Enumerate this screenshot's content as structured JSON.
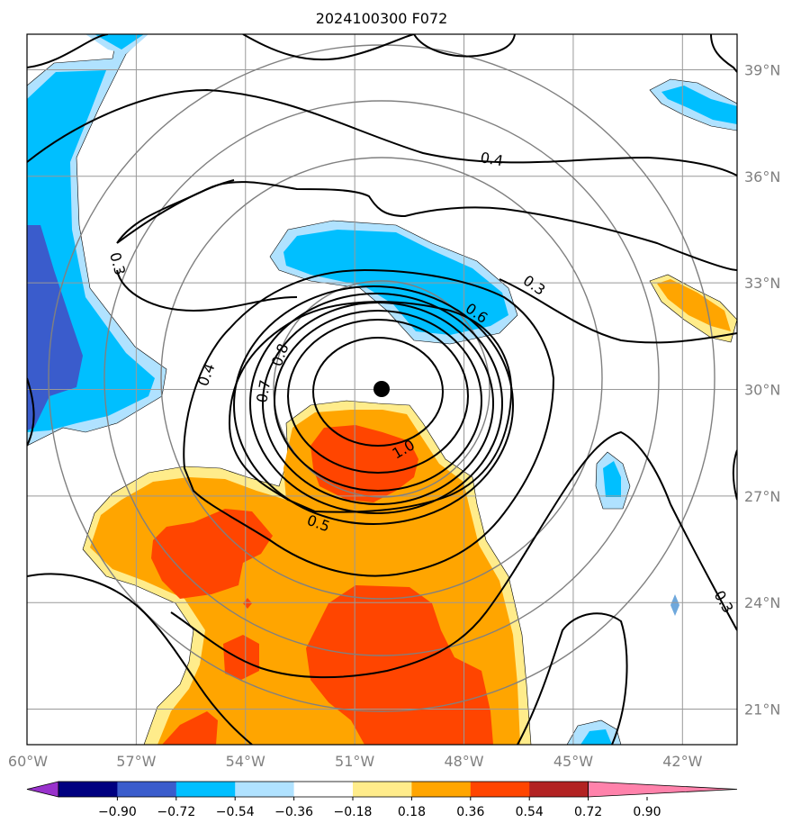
{
  "title": "2024100300 F072",
  "chart_data": {
    "type": "heatmap",
    "title": "2024100300 F072",
    "map_extent": {
      "lon": [
        -60,
        -40.5
      ],
      "lat": [
        20,
        40
      ]
    },
    "lon_ticks": [
      -60,
      -57,
      -54,
      -51,
      -48,
      -45,
      -42
    ],
    "lon_tick_labels": [
      "60°W",
      "57°W",
      "54°W",
      "51°W",
      "48°W",
      "45°W",
      "42°W"
    ],
    "lat_ticks": [
      21,
      24,
      27,
      30,
      33,
      36,
      39
    ],
    "lat_tick_labels": [
      "21°N",
      "24°N",
      "27°N",
      "30°N",
      "33°N",
      "36°N",
      "39°N"
    ],
    "grid": true,
    "center": {
      "lon": -49.8,
      "lat": 30.0
    },
    "range_rings": 4,
    "colorbar": {
      "position": "bottom",
      "extend": "both",
      "levels": [
        -0.9,
        -0.72,
        -0.54,
        -0.36,
        -0.18,
        0.18,
        0.36,
        0.54,
        0.72,
        0.9
      ],
      "tick_labels": [
        "−0.90",
        "−0.72",
        "−0.54",
        "−0.36",
        "−0.18",
        "0.18",
        "0.36",
        "0.54",
        "0.72",
        "0.90"
      ],
      "colors": [
        "#9932cc",
        "#000080",
        "#3a5ccc",
        "#00bfff",
        "#b0e2ff",
        "#ffffff",
        "#ffec8b",
        "#ffa500",
        "#ff4500",
        "#b22222",
        "#ff82ab"
      ]
    },
    "contour_labels": [
      "0.3",
      "0.4",
      "0.5",
      "0.6",
      "0.7",
      "0.8",
      "1.0"
    ],
    "fill_colors": {
      "positive_light": "#ffec8b",
      "positive_mid": "#ffa500",
      "positive_high": "#ff4500",
      "negative_light": "#b0e2ff",
      "negative_mid": "#00bfff",
      "negative_high": "#3a5ccc"
    }
  }
}
